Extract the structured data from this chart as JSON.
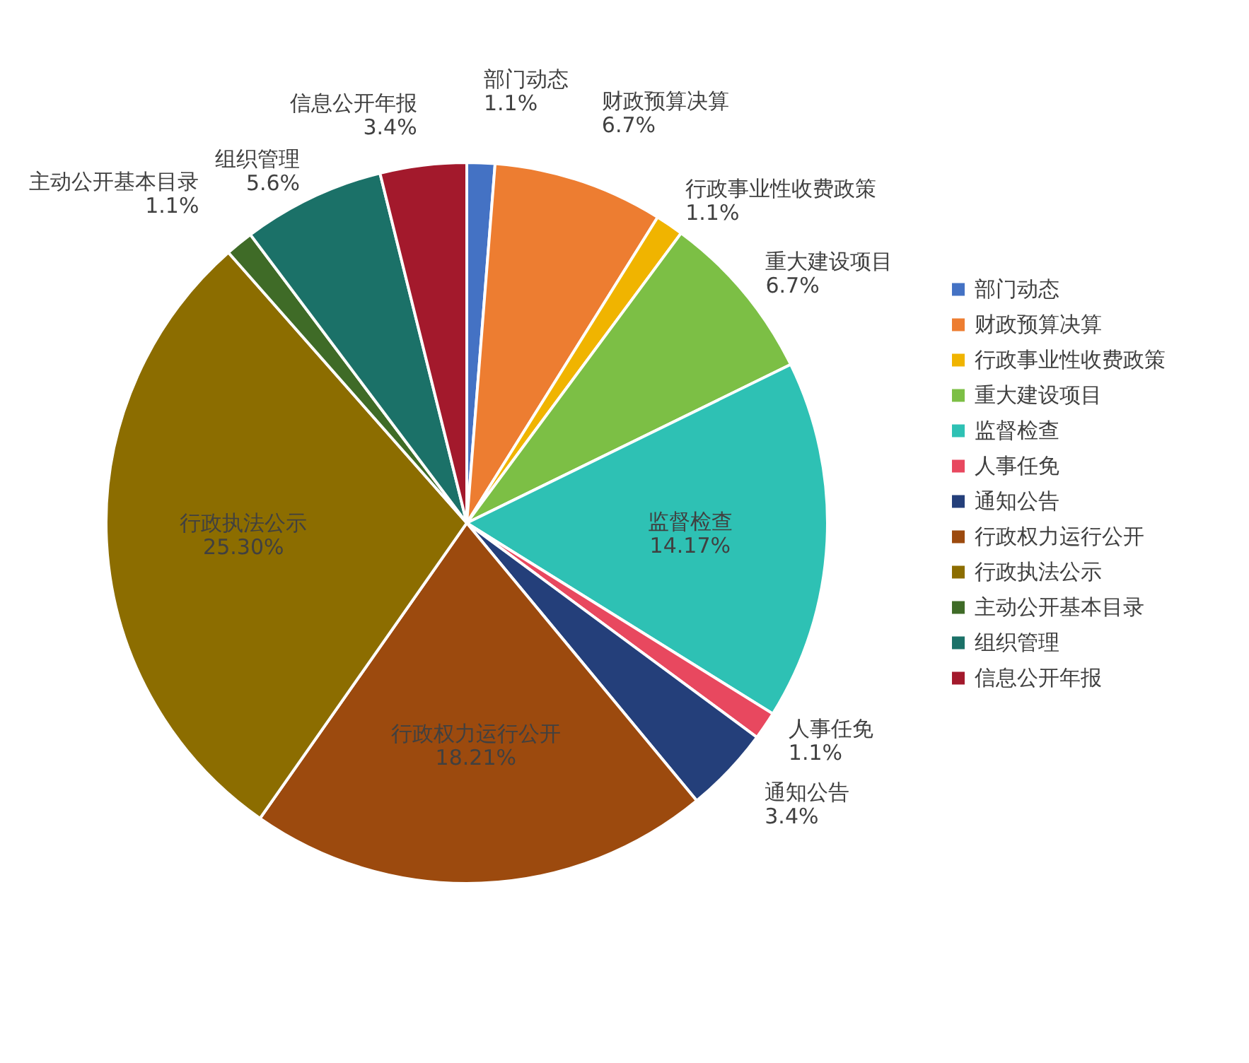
{
  "chart_data": {
    "type": "pie",
    "legend": "right",
    "categories": [
      "部门动态",
      "财政预算决算",
      "行政事业性收费政策",
      "重大建设项目",
      "监督检查",
      "人事任免",
      "通知公告",
      "行政权力运行公开",
      "行政执法公示",
      "主动公开基本目录",
      "组织管理",
      "信息公开年报"
    ],
    "values": [
      1.1,
      6.7,
      1.1,
      6.7,
      14.17,
      1.1,
      3.4,
      18.21,
      25.3,
      1.1,
      5.6,
      3.4
    ],
    "value_labels": [
      "1.1%",
      "6.7%",
      "1.1%",
      "6.7%",
      "14.17%",
      "1.1%",
      "3.4%",
      "18.21%",
      "25.30%",
      "1.1%",
      "5.6%",
      "3.4%"
    ],
    "colors": [
      "#4472c4",
      "#ed7d31",
      "#f0b400",
      "#7cbf45",
      "#2ec1b4",
      "#e8485f",
      "#243f7a",
      "#9c4a0e",
      "#8c6d00",
      "#3f6b27",
      "#1b7168",
      "#a3192c"
    ]
  }
}
